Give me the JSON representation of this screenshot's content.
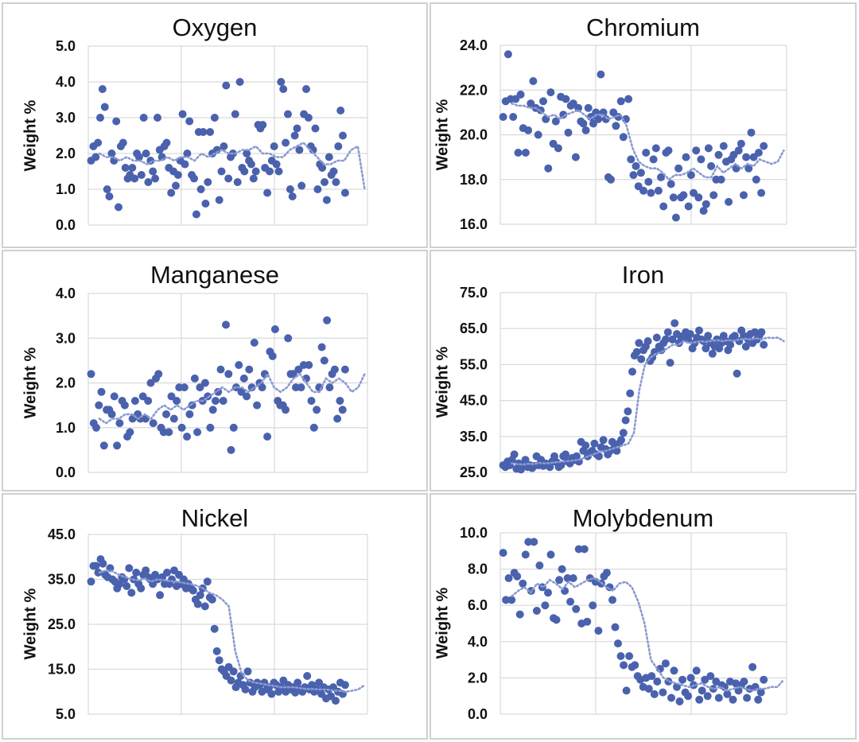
{
  "chart_data": [
    {
      "type": "scatter",
      "title": "Oxygen",
      "xlabel": "",
      "ylabel": "Weight %",
      "ylim": [
        0,
        5
      ],
      "yticks": [
        "0.0",
        "1.0",
        "2.0",
        "3.0",
        "4.0",
        "5.0"
      ],
      "grid": true,
      "colors": {
        "points": "#4a62ad",
        "trend": "#8a9ad2"
      },
      "series": [
        {
          "values": [
            1.8,
            2.2,
            1.9,
            2.3,
            3.0,
            3.8,
            3.3,
            1.0,
            0.8,
            2.0,
            1.8,
            2.9,
            0.5,
            2.2,
            2.3,
            1.6,
            1.3,
            1.4,
            1.6,
            1.3,
            2.0,
            1.9,
            1.4,
            3.0,
            2.0,
            1.2,
            1.8,
            1.5,
            1.3,
            3.0,
            2.1,
            1.9,
            2.2,
            2.3,
            1.6,
            0.9,
            1.5,
            1.1,
            1.4,
            1.8,
            3.1,
            1.7,
            2.0,
            2.9,
            1.4,
            1.3,
            0.3,
            2.6,
            1.0,
            2.6,
            0.6,
            1.2,
            2.6,
            2.0,
            3.0,
            2.1,
            0.7,
            1.5,
            2.2,
            3.9,
            1.3,
            1.9,
            2.0,
            3.1,
            1.2,
            4.0,
            1.6,
            1.5,
            2.0,
            1.8,
            1.7,
            1.3,
            1.5,
            2.8,
            2.7,
            2.8,
            1.6,
            0.9,
            1.5,
            1.8,
            2.2,
            1.7,
            1.5,
            4.0,
            3.8,
            2.3,
            3.1,
            1.0,
            0.8,
            2.5,
            2.7,
            2.1,
            1.1,
            3.1,
            3.8,
            3.0,
            2.2,
            2.1,
            2.7,
            1.0,
            1.7,
            1.6,
            1.2,
            0.7,
            1.9,
            1.4,
            1.5,
            1.2,
            2.2,
            3.2,
            2.5,
            0.9
          ]
        },
        {
          "values": [
            2.0,
            1.9,
            1.9,
            1.8,
            1.9,
            1.8,
            1.8,
            1.7,
            1.8,
            1.8,
            1.9,
            1.8,
            1.9,
            1.9,
            1.8,
            2.0,
            1.9,
            2.0,
            2.1,
            2.0,
            2.0,
            2.1,
            2.1,
            2.2,
            2.0,
            2.0,
            1.9,
            1.9,
            2.1,
            2.2,
            2.3,
            2.1,
            1.9,
            1.7,
            1.7,
            1.8,
            1.8,
            2.1,
            2.2,
            1.0
          ]
        }
      ]
    },
    {
      "type": "scatter",
      "title": "Chromium",
      "xlabel": "",
      "ylabel": "Weight %",
      "ylim": [
        16,
        24
      ],
      "yticks": [
        "16.0",
        "18.0",
        "20.0",
        "22.0",
        "24.0"
      ],
      "grid": true,
      "colors": {
        "points": "#4a62ad",
        "trend": "#8a9ad2"
      },
      "series": [
        {
          "values": [
            20.8,
            21.5,
            23.6,
            21.6,
            20.8,
            21.6,
            19.2,
            21.8,
            20.3,
            19.2,
            20.2,
            21.4,
            22.4,
            21.2,
            20.0,
            21.1,
            21.5,
            20.7,
            18.5,
            21.9,
            19.6,
            20.6,
            19.4,
            21.7,
            20.9,
            21.6,
            20.1,
            21.3,
            21.4,
            19.0,
            21.2,
            20.6,
            20.5,
            20.2,
            21.2,
            20.8,
            20.5,
            21.0,
            20.7,
            22.7,
            21.0,
            20.7,
            18.1,
            18.0,
            21.0,
            20.4,
            20.8,
            21.5,
            19.9,
            20.7,
            21.6,
            18.9,
            18.2,
            18.6,
            17.7,
            18.3,
            17.5,
            19.2,
            17.9,
            17.4,
            18.9,
            19.4,
            17.5,
            18.1,
            16.8,
            19.2,
            19.3,
            17.8,
            17.2,
            16.3,
            18.5,
            17.2,
            17.3,
            19.0,
            16.8,
            18.2,
            17.4,
            19.3,
            17.2,
            18.9,
            16.6,
            16.9,
            19.4,
            18.6,
            17.3,
            18.0,
            19.1,
            18.0,
            19.5,
            18.8,
            17.0,
            18.9,
            19.1,
            18.5,
            19.3,
            19.6,
            17.3,
            19.0,
            18.5,
            20.1,
            19.0,
            18.0,
            19.2,
            17.4,
            19.5
          ]
        },
        {
          "values": [
            21.4,
            21.3,
            21.3,
            21.2,
            21.2,
            21.0,
            20.8,
            20.9,
            20.7,
            20.9,
            21.0,
            21.1,
            20.9,
            20.7,
            20.9,
            20.9,
            20.7,
            20.8,
            20.9,
            20.4,
            19.4,
            18.8,
            18.6,
            18.5,
            18.5,
            18.3,
            18.0,
            18.2,
            18.2,
            18.3,
            18.5,
            18.3,
            18.1,
            18.1,
            18.6,
            18.3,
            18.5,
            18.7,
            18.5,
            18.7,
            18.6,
            18.9,
            18.8,
            18.7,
            18.8,
            19.3
          ]
        }
      ]
    },
    {
      "type": "scatter",
      "title": "Manganese",
      "xlabel": "",
      "ylabel": "Weight %",
      "ylim": [
        0,
        4
      ],
      "yticks": [
        "0.0",
        "1.0",
        "2.0",
        "3.0",
        "4.0"
      ],
      "grid": true,
      "colors": {
        "points": "#4a62ad",
        "trend": "#8a9ad2"
      },
      "series": [
        {
          "values": [
            2.2,
            1.1,
            1.0,
            1.5,
            1.8,
            0.6,
            1.4,
            1.4,
            1.3,
            1.7,
            0.6,
            1.1,
            1.6,
            1.5,
            0.8,
            0.9,
            1.2,
            1.6,
            1.3,
            1.2,
            1.7,
            1.2,
            1.6,
            2.0,
            1.1,
            2.1,
            2.2,
            1.0,
            0.9,
            1.3,
            0.9,
            1.7,
            1.2,
            1.6,
            1.9,
            1.0,
            1.9,
            0.8,
            1.3,
            1.5,
            2.1,
            0.9,
            1.9,
            1.6,
            2.0,
            1.7,
            1.0,
            1.4,
            1.6,
            1.8,
            2.3,
            1.6,
            3.3,
            2.2,
            0.5,
            1.0,
            1.9,
            2.4,
            1.8,
            2.1,
            1.7,
            2.3,
            1.9,
            2.9,
            1.5,
            2.0,
            1.9,
            2.2,
            0.8,
            2.7,
            2.6,
            3.2,
            1.6,
            1.5,
            1.5,
            1.4,
            3.0,
            2.2,
            2.2,
            1.9,
            2.3,
            1.9,
            2.4,
            2.1,
            2.4,
            1.6,
            1.0,
            1.4,
            1.9,
            2.8,
            2.5,
            3.4,
            1.9,
            2.2,
            2.3,
            1.2,
            1.6,
            1.4,
            2.3
          ]
        },
        {
          "values": [
            1.2,
            1.1,
            1.2,
            1.2,
            1.3,
            1.3,
            1.2,
            1.3,
            1.2,
            1.4,
            1.5,
            1.4,
            1.5,
            1.4,
            1.5,
            1.6,
            1.6,
            1.7,
            1.8,
            1.9,
            1.8,
            1.9,
            1.9,
            1.8,
            1.9,
            2.0,
            2.2,
            1.9,
            1.8,
            1.9,
            2.1,
            2.2,
            2.0,
            1.8,
            1.8,
            2.1,
            2.0,
            2.1,
            2.0,
            1.8,
            1.9,
            2.2
          ]
        }
      ]
    },
    {
      "type": "scatter",
      "title": "Iron",
      "xlabel": "",
      "ylabel": "Weight %",
      "ylim": [
        25,
        75
      ],
      "yticks": [
        "25.0",
        "35.0",
        "45.0",
        "55.0",
        "65.0",
        "75.0"
      ],
      "grid": true,
      "colors": {
        "points": "#4a62ad",
        "trend": "#8a9ad2"
      },
      "series": [
        {
          "values": [
            27.0,
            26.5,
            28.0,
            27.0,
            28.5,
            30.0,
            26.0,
            27.5,
            25.8,
            27.0,
            28.5,
            26.5,
            27.0,
            26.2,
            26.8,
            29.5,
            27.0,
            28.5,
            26.8,
            27.5,
            27.0,
            26.5,
            28.0,
            29.5,
            27.8,
            26.5,
            27.0,
            29.5,
            30.0,
            28.0,
            27.5,
            29.0,
            28.5,
            29.5,
            28.0,
            33.5,
            31.0,
            32.5,
            29.5,
            30.5,
            31.0,
            33.0,
            30.0,
            29.5,
            32.0,
            34.0,
            31.5,
            30.0,
            31.0,
            33.5,
            32.0,
            31.0,
            33.0,
            34.0,
            36.0,
            39.5,
            42.0,
            47.0,
            53.0,
            57.5,
            58.5,
            61.0,
            56.5,
            59.0,
            60.0,
            61.5,
            56.0,
            57.0,
            58.5,
            62.5,
            60.0,
            59.0,
            61.0,
            62.0,
            64.0,
            55.5,
            62.0,
            66.5,
            63.5,
            61.0,
            62.5,
            63.0,
            64.0,
            62.0,
            63.5,
            59.5,
            61.0,
            62.5,
            64.5,
            62.0,
            61.5,
            59.5,
            63.0,
            61.0,
            58.0,
            60.0,
            62.0,
            59.5,
            61.0,
            63.0,
            61.5,
            59.0,
            60.5,
            62.5,
            63.0,
            52.5,
            61.5,
            64.5,
            63.0,
            60.0,
            62.0,
            63.5,
            61.0,
            64.0,
            62.0,
            63.0,
            64.0,
            60.5
          ]
        },
        {
          "values": [
            27.5,
            27.3,
            27.2,
            27.4,
            27.3,
            27.6,
            27.5,
            27.6,
            27.8,
            28.0,
            28.1,
            28.3,
            28.5,
            29.0,
            29.6,
            30.2,
            30.8,
            31.0,
            31.5,
            32.0,
            32.5,
            33.0,
            36.0,
            48.0,
            55.0,
            57.0,
            58.0,
            58.5,
            59.5,
            60.5,
            60.5,
            61.5,
            61.0,
            61.2,
            61.5,
            61.3,
            61.6,
            61.8,
            61.5,
            61.8,
            61.6,
            62.0,
            62.2,
            62.0,
            62.3,
            62.0,
            62.5,
            62.4,
            62.5,
            61.5
          ]
        }
      ]
    },
    {
      "type": "scatter",
      "title": "Nickel",
      "xlabel": "",
      "ylabel": "Weight %",
      "ylim": [
        5,
        45
      ],
      "yticks": [
        "5.0",
        "15.0",
        "25.0",
        "35.0",
        "45.0"
      ],
      "grid": true,
      "colors": {
        "points": "#4a62ad",
        "trend": "#8a9ad2"
      },
      "series": [
        {
          "values": [
            34.5,
            38.0,
            38.0,
            36.5,
            39.5,
            38.5,
            36.0,
            35.5,
            37.5,
            35.0,
            34.5,
            33.0,
            34.0,
            35.5,
            35.0,
            33.5,
            37.5,
            32.0,
            35.0,
            36.5,
            34.0,
            33.0,
            36.0,
            37.0,
            35.5,
            35.0,
            34.0,
            36.0,
            35.0,
            31.5,
            35.5,
            34.0,
            36.5,
            34.0,
            35.0,
            37.0,
            33.5,
            36.0,
            34.0,
            35.0,
            33.0,
            34.0,
            33.0,
            32.5,
            30.5,
            29.5,
            31.5,
            33.0,
            29.0,
            34.5,
            31.0,
            30.5,
            24.0,
            19.0,
            17.0,
            15.0,
            14.5,
            13.5,
            15.5,
            12.5,
            14.5,
            11.0,
            12.0,
            13.5,
            11.5,
            10.5,
            14.5,
            12.0,
            10.0,
            11.0,
            12.0,
            11.5,
            10.0,
            12.0,
            10.5,
            11.0,
            9.5,
            12.0,
            11.5,
            10.0,
            11.0,
            12.5,
            10.0,
            11.5,
            10.5,
            11.0,
            9.8,
            12.0,
            10.5,
            10.0,
            11.0,
            13.5,
            10.5,
            11.5,
            10.0,
            10.5,
            12.0,
            9.5,
            11.0,
            8.5,
            10.5,
            9.0,
            11.0,
            8.0,
            10.0,
            12.0,
            9.5,
            11.5
          ]
        },
        {
          "values": [
            36.5,
            37.0,
            36.8,
            36.0,
            35.5,
            35.0,
            34.8,
            35.2,
            34.5,
            35.0,
            34.8,
            34.6,
            34.5,
            34.2,
            34.0,
            33.6,
            33.0,
            32.0,
            31.5,
            30.5,
            29.0,
            19.0,
            14.0,
            12.5,
            12.0,
            11.8,
            11.5,
            11.3,
            11.0,
            11.0,
            11.0,
            10.8,
            10.6,
            10.6,
            10.5,
            10.5,
            10.3,
            10.2,
            10.0,
            10.2,
            10.5,
            11.5
          ]
        }
      ]
    },
    {
      "type": "scatter",
      "title": "Molybdenum",
      "xlabel": "",
      "ylabel": "Weight %",
      "ylim": [
        0,
        10
      ],
      "yticks": [
        "0.0",
        "2.0",
        "4.0",
        "6.0",
        "8.0",
        "10.0"
      ],
      "grid": true,
      "colors": {
        "points": "#4a62ad",
        "trend": "#8a9ad2"
      },
      "series": [
        {
          "values": [
            8.9,
            6.3,
            7.5,
            6.3,
            7.8,
            7.6,
            5.5,
            7.2,
            8.8,
            9.5,
            6.8,
            9.5,
            5.7,
            8.2,
            7.0,
            6.0,
            6.7,
            8.8,
            5.3,
            5.2,
            7.4,
            8.0,
            6.8,
            7.5,
            6.2,
            7.5,
            5.8,
            9.1,
            5.0,
            9.1,
            5.1,
            7.5,
            6.0,
            7.3,
            4.6,
            7.2,
            7.6,
            7.8,
            7.0,
            6.3,
            4.8,
            3.9,
            3.2,
            2.7,
            1.3,
            3.2,
            2.6,
            2.7,
            2.1,
            1.9,
            1.5,
            2.0,
            1.4,
            2.1,
            1.1,
            1.8,
            2.5,
            1.2,
            2.8,
            1.8,
            0.9,
            2.4,
            1.5,
            0.7,
            1.9,
            1.2,
            1.0,
            2.0,
            1.6,
            2.4,
            0.8,
            1.3,
            1.9,
            1.0,
            2.1,
            1.4,
            1.8,
            0.9,
            1.6,
            1.5,
            1.1,
            1.8,
            0.8,
            1.7,
            1.3,
            1.6,
            1.8,
            0.9,
            1.4,
            2.6,
            1.5,
            0.8,
            1.2,
            1.9
          ]
        },
        {
          "values": [
            6.5,
            6.8,
            7.0,
            6.7,
            7.2,
            7.0,
            7.4,
            7.2,
            6.9,
            7.3,
            7.0,
            7.2,
            7.4,
            7.5,
            7.3,
            7.0,
            6.8,
            7.2,
            7.3,
            7.0,
            6.2,
            5.0,
            3.0,
            2.5,
            2.0,
            1.8,
            1.7,
            1.6,
            1.5,
            1.6,
            1.7,
            1.5,
            1.4,
            1.5,
            1.3,
            1.4,
            1.5,
            1.4,
            1.3,
            1.4,
            1.4,
            1.5,
            1.5,
            1.9
          ]
        }
      ]
    }
  ]
}
